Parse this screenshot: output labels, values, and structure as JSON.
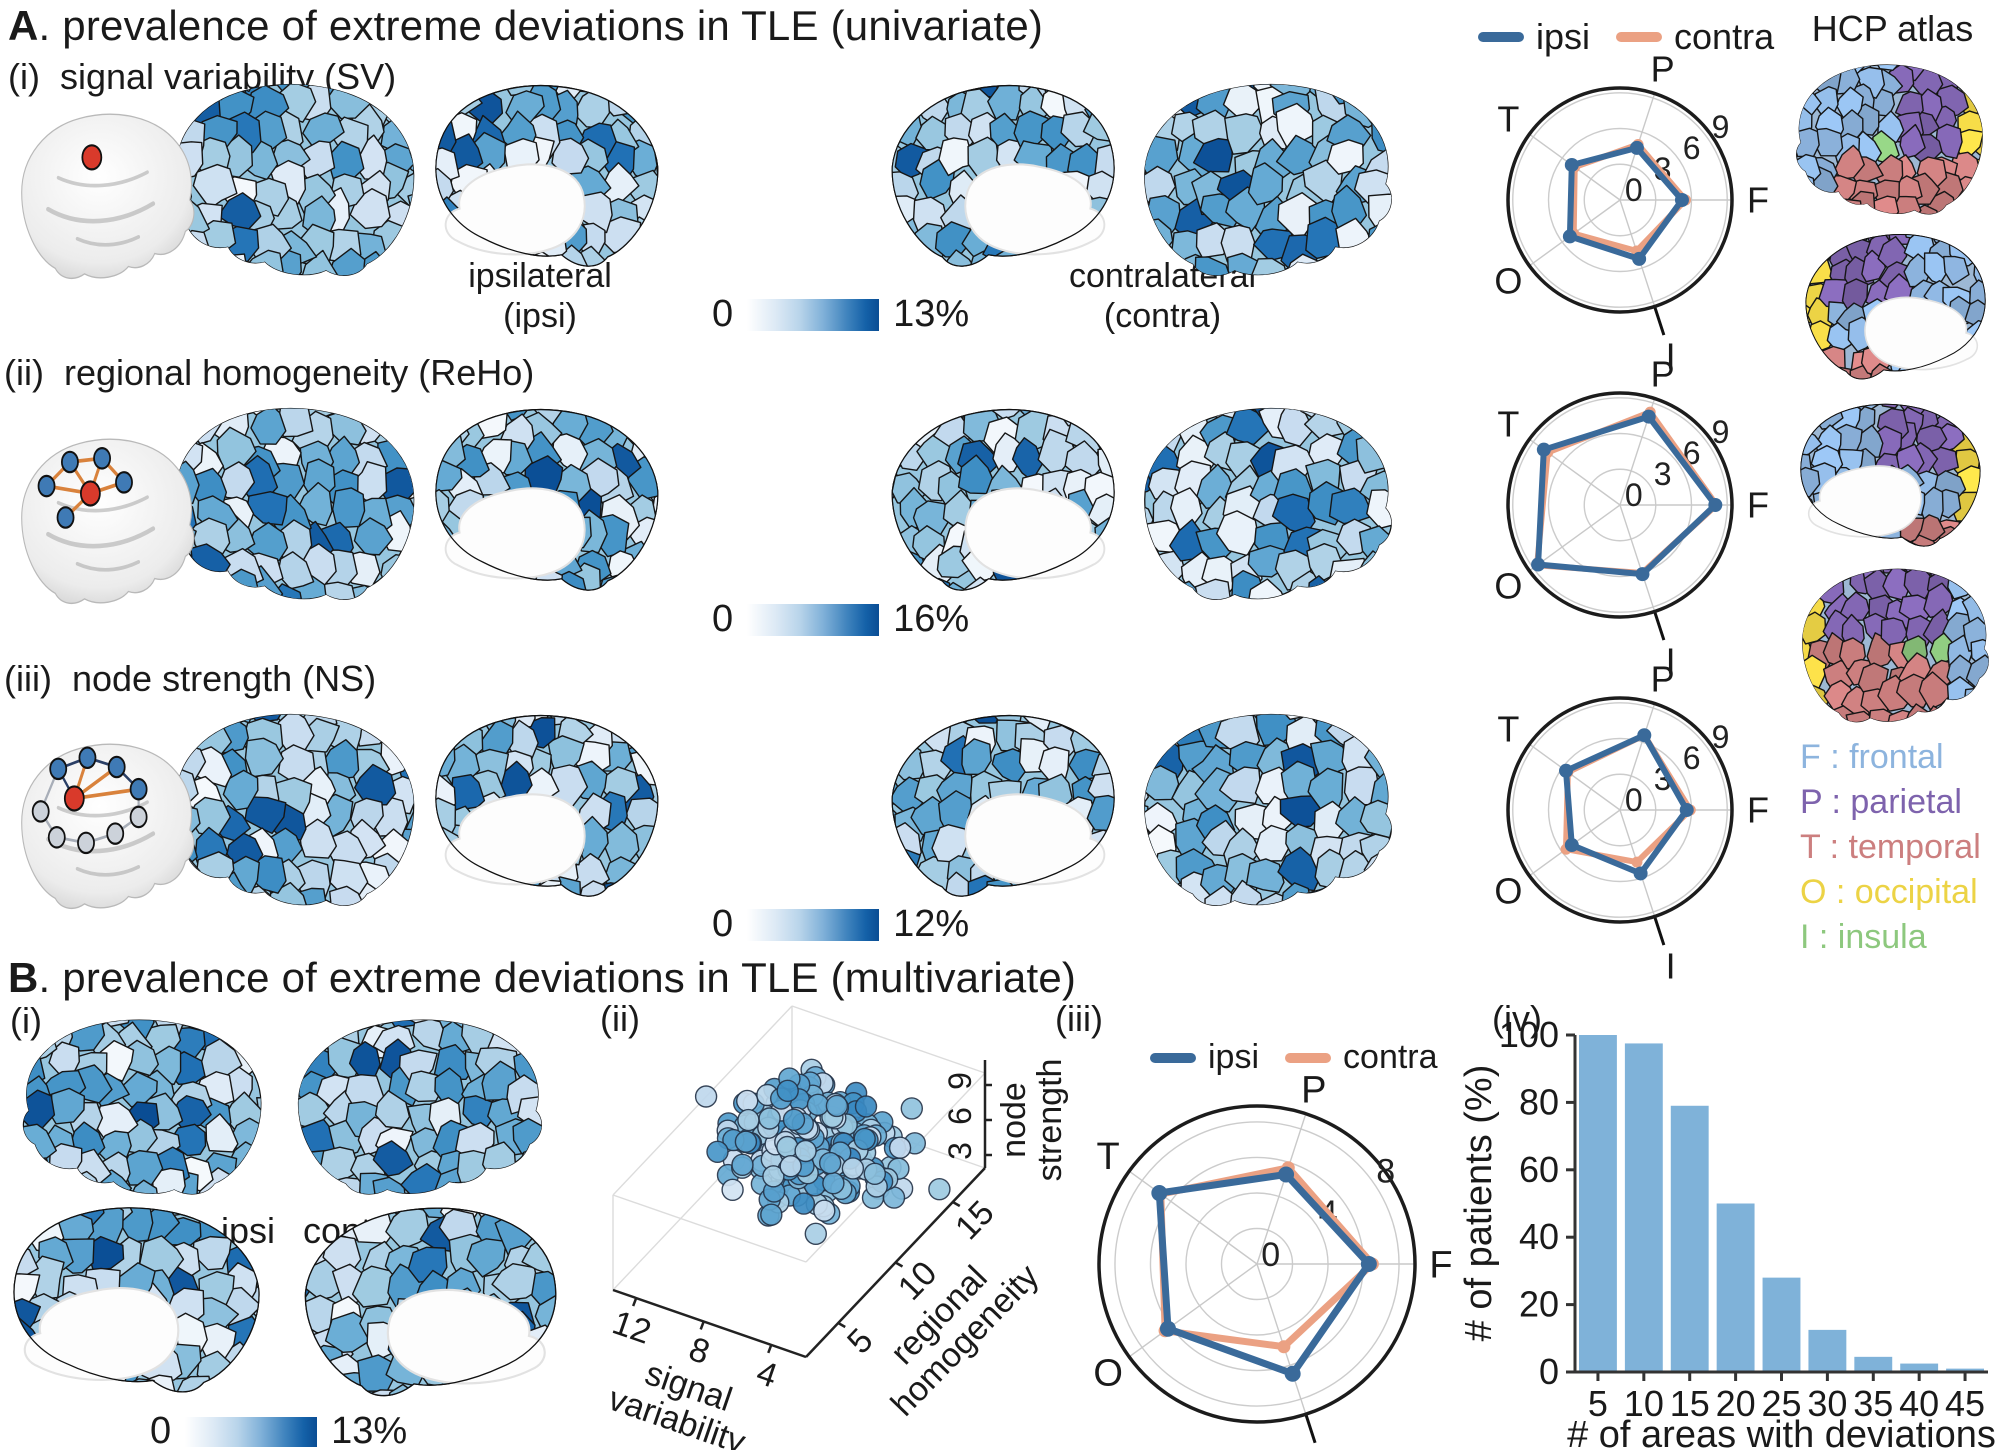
{
  "colors": {
    "ipsi": "#3a6a9a",
    "contra": "#eba183",
    "bar_fill": "#7fb2d9",
    "heat_min": "#ffffff",
    "heat_max": "#0a4d94",
    "frontal": "#8db4de",
    "parietal": "#7e63ad",
    "temporal": "#cc7f7f",
    "occipital": "#ecd345",
    "insula": "#8dc87e",
    "node_red": "#d93a2b",
    "node_blue": "#3f7ab5",
    "node_gray": "#ccd2da",
    "edge_orange": "#d9823c",
    "edge_navy": "#2a3f66",
    "edge_gray": "#a8aeb8"
  },
  "panel_a": {
    "title_letter": "A",
    "title_rest": ". prevalence of extreme deviations in TLE (univariate)",
    "legend": {
      "ipsi": "ipsi",
      "contra": "contra"
    },
    "hcp_atlas_label": "HCP atlas",
    "rows": [
      {
        "index": "(i)",
        "title": "signal variability (SV)",
        "cbar_min": "0",
        "cbar_max": "13%"
      },
      {
        "index": "(ii)",
        "title": "regional homogeneity (ReHo)",
        "cbar_min": "0",
        "cbar_max": "16%"
      },
      {
        "index": "(iii)",
        "title": "node strength (NS)",
        "cbar_min": "0",
        "cbar_max": "12%"
      }
    ],
    "ipsi_line1": "ipsilateral",
    "ipsi_line2": "(ipsi)",
    "contra_line1": "contralateral",
    "contra_line2": "(contra)",
    "atlas_legend": [
      {
        "text": "F : frontal",
        "color": "#8db4de"
      },
      {
        "text": "P : parietal",
        "color": "#7e63ad"
      },
      {
        "text": "T : temporal",
        "color": "#cc7f7f"
      },
      {
        "text": "O : occipital",
        "color": "#ecd345"
      },
      {
        "text": "I : insula",
        "color": "#8dc87e"
      }
    ]
  },
  "panel_b": {
    "title_letter": "B",
    "title_rest": ". prevalence of extreme deviations in TLE (multivariate)",
    "label_i": "(i)",
    "label_ii": "(ii)",
    "label_iii": "(iii)",
    "label_iv": "(iv)",
    "ipsi_text": "ipsi",
    "contra_text": "contra",
    "cbar_min": "0",
    "cbar_max": "13%",
    "legend": {
      "ipsi": "ipsi",
      "contra": "contra"
    }
  },
  "chart_data": [
    {
      "id": "radar_sv",
      "type": "radar",
      "panel": "A(i) signal variability",
      "axes": [
        "P",
        "F",
        "I",
        "O",
        "T"
      ],
      "angles_deg": [
        72,
        0,
        288,
        216,
        144
      ],
      "grid_ticks": [
        3,
        6,
        9
      ],
      "label_ticks": [
        0,
        3,
        6,
        9
      ],
      "r_outer": 9.4,
      "series": [
        {
          "name": "ipsi",
          "values": [
            4.6,
            5.2,
            5.2,
            5.2,
            5.0
          ]
        },
        {
          "name": "contra",
          "values": [
            4.9,
            5.5,
            4.5,
            4.8,
            4.7
          ]
        }
      ]
    },
    {
      "id": "radar_reho",
      "type": "radar",
      "panel": "A(ii) regional homogeneity",
      "axes": [
        "P",
        "F",
        "I",
        "O",
        "T"
      ],
      "angles_deg": [
        72,
        0,
        288,
        216,
        144
      ],
      "grid_ticks": [
        3,
        6,
        9
      ],
      "label_ticks": [
        0,
        3,
        6,
        9
      ],
      "r_outer": 9.4,
      "series": [
        {
          "name": "ipsi",
          "values": [
            7.8,
            8.0,
            6.1,
            8.5,
            7.9
          ]
        },
        {
          "name": "contra",
          "values": [
            8.2,
            8.1,
            6.0,
            8.6,
            7.5
          ]
        }
      ]
    },
    {
      "id": "radar_ns",
      "type": "radar",
      "panel": "A(iii) node strength",
      "axes": [
        "P",
        "F",
        "I",
        "O",
        "T"
      ],
      "angles_deg": [
        72,
        0,
        288,
        216,
        144
      ],
      "grid_ticks": [
        3,
        6,
        9
      ],
      "label_ticks": [
        0,
        3,
        6,
        9
      ],
      "r_outer": 9.4,
      "series": [
        {
          "name": "ipsi",
          "values": [
            6.6,
            5.6,
            5.6,
            5.0,
            5.6
          ]
        },
        {
          "name": "contra",
          "values": [
            6.6,
            5.9,
            4.6,
            5.6,
            5.4
          ]
        }
      ]
    },
    {
      "id": "radar_mv",
      "type": "radar",
      "panel": "B(iii) multivariate",
      "axes": [
        "P",
        "F",
        "I",
        "O",
        "T"
      ],
      "angles_deg": [
        72,
        0,
        288,
        216,
        144
      ],
      "grid_ticks": [
        2,
        4,
        6,
        8
      ],
      "label_ticks": [
        0,
        4,
        8
      ],
      "r_outer": 8.9,
      "series": [
        {
          "name": "ipsi",
          "values": [
            5.3,
            6.3,
            6.5,
            6.2,
            6.8
          ]
        },
        {
          "name": "contra",
          "values": [
            5.7,
            6.5,
            4.9,
            6.4,
            6.7
          ]
        }
      ]
    },
    {
      "id": "scatter3d",
      "type": "scatter3d",
      "panel": "B(ii)",
      "xlabel": "signal variability",
      "x_ticks": [
        12,
        8,
        4
      ],
      "ylabel": "regional homogeneity",
      "y_ticks": [
        5,
        10,
        15
      ],
      "zlabel": "node strength",
      "z_ticks": [
        3,
        6,
        9
      ],
      "n_points": 235
    },
    {
      "id": "areas_hist",
      "type": "bar",
      "panel": "B(iv)",
      "xlabel": "# of areas with deviations",
      "ylabel": "# of patients (%)",
      "categories": [
        5,
        10,
        15,
        20,
        25,
        30,
        35,
        40,
        45
      ],
      "values": [
        100,
        97.5,
        79,
        50,
        28,
        12.5,
        4.5,
        2.5,
        1
      ],
      "ylim": [
        0,
        100
      ],
      "yticks": [
        0,
        20,
        40,
        60,
        80,
        100
      ]
    }
  ]
}
